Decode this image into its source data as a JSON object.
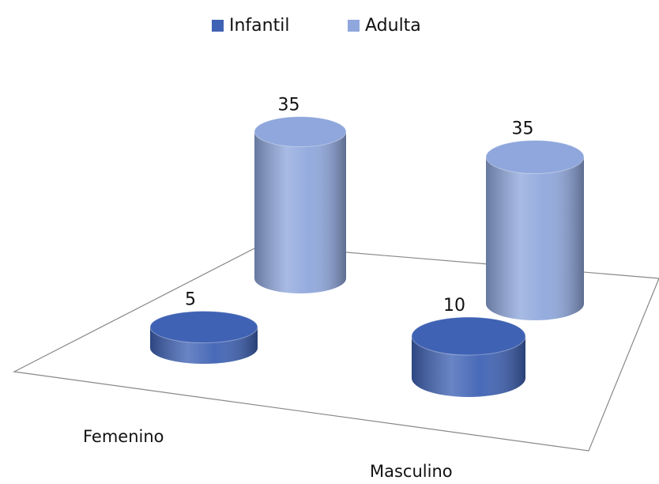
{
  "chart_data": {
    "type": "bar3d",
    "categories": [
      "Femenino",
      "Masculino"
    ],
    "series": [
      {
        "name": "Infantil",
        "color": "#3f62b4",
        "values": [
          5,
          10
        ]
      },
      {
        "name": "Adulta",
        "color": "#8fa7dc",
        "values": [
          35,
          35
        ]
      }
    ],
    "legend": "top"
  }
}
